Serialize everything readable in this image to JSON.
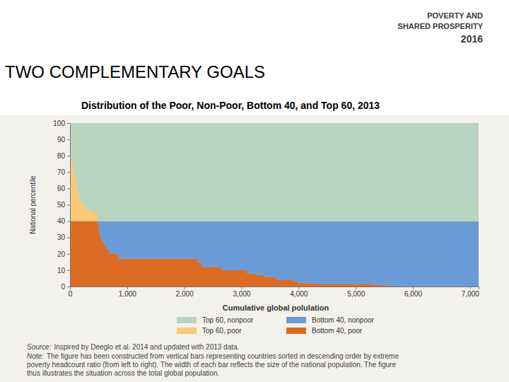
{
  "slide": {
    "logo": [
      "POVERTY AND",
      "SHARED PROSPERITY",
      "2016"
    ],
    "title": "TWO COMPLEMENTARY GOALS",
    "source_label": "Source:",
    "source": "Inspired by Deeglo et al. 2014 and updated with 2013 data.",
    "note_label": "Note:",
    "note_lines": [
      "The figure has been constructed from vertical bars representing countries sorted in descending order by extreme",
      "poverty headcount ratio (from left to right). The width of each bar reflects the size of the national population. The figure",
      "thus illustrates the situation across the total global population."
    ]
  },
  "chart_data": {
    "type": "area",
    "stacked": true,
    "grid": false,
    "title": "Distribution of the Poor, Non-Poor, Bottom 40, and Top 60, 2013",
    "x_label": "Cumulative global polulation",
    "y_label": "National percentile",
    "x": [
      0,
      30,
      60,
      80,
      100,
      120,
      140,
      170,
      220,
      300,
      400,
      480,
      510,
      530,
      560,
      600,
      640,
      680,
      850,
      2230,
      2300,
      2650,
      3100,
      3250,
      3400,
      3600,
      3900,
      4000,
      4300,
      5300,
      5500,
      5700,
      7150
    ],
    "series": [
      {
        "name": "Bottom 40, poor",
        "color": "#de6b23",
        "values": [
          40,
          40,
          40,
          40,
          40,
          40,
          40,
          40,
          40,
          40,
          40,
          38,
          33,
          30,
          27,
          25,
          23,
          20,
          17,
          15,
          12,
          10,
          8,
          7,
          6,
          4,
          3,
          2,
          1.5,
          1,
          0.5,
          0,
          0
        ]
      },
      {
        "name": "Bottom 40, nonpoor",
        "color": "#6b9bd6",
        "values": [
          0,
          0,
          0,
          0,
          0,
          0,
          0,
          0,
          0,
          0,
          0,
          2,
          7,
          10,
          13,
          15,
          17,
          20,
          23,
          25,
          28,
          30,
          32,
          33,
          34,
          36,
          37,
          38,
          38.5,
          39,
          39.5,
          40,
          40
        ]
      },
      {
        "name": "Top 60, poor",
        "color": "#fbc977",
        "values": [
          37,
          35,
          32,
          28,
          24,
          20,
          16,
          12,
          9,
          7,
          5,
          0,
          0,
          0,
          0,
          0,
          0,
          0,
          0,
          0,
          0,
          0,
          0,
          0,
          0,
          0,
          0,
          0,
          0,
          0,
          0,
          0,
          0
        ]
      },
      {
        "name": "Top 60, nonpoor",
        "color": "#b8d5c2",
        "values": [
          23,
          25,
          28,
          32,
          36,
          40,
          44,
          48,
          51,
          53,
          55,
          60,
          60,
          60,
          60,
          60,
          60,
          60,
          60,
          60,
          60,
          60,
          60,
          60,
          60,
          60,
          60,
          60,
          60,
          60,
          60,
          60,
          60
        ]
      }
    ],
    "xlim": [
      0,
      7150
    ],
    "xticks": [
      0,
      {
        "value": 1000,
        "label": "1,000"
      },
      {
        "value": 2000,
        "label": "2,000"
      },
      {
        "value": 3000,
        "label": "3,000"
      },
      {
        "value": 4000,
        "label": "4,000"
      },
      {
        "value": 5000,
        "label": "5,000"
      },
      {
        "value": 6000,
        "label": "6,000"
      },
      {
        "value": 7000,
        "label": "7,000"
      }
    ],
    "ylim": [
      0,
      100
    ],
    "yticks": [
      0,
      10,
      20,
      30,
      40,
      50,
      60,
      70,
      80,
      90,
      100
    ]
  }
}
